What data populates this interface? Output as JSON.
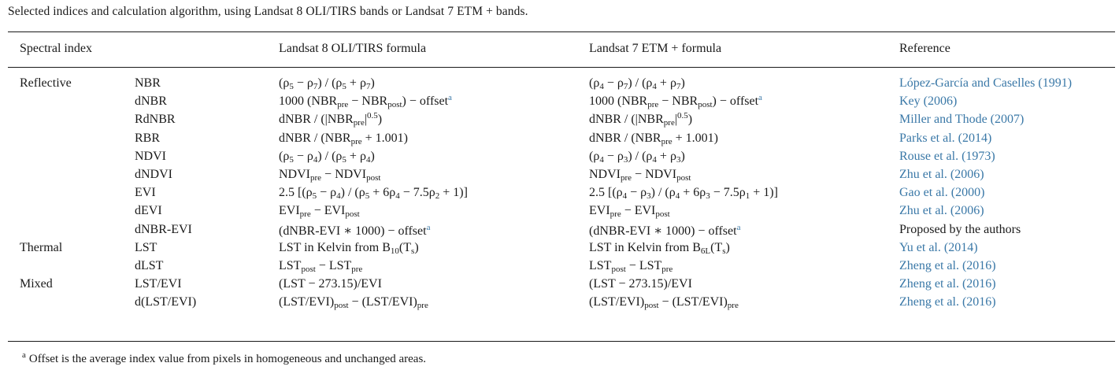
{
  "caption": "Selected indices and calculation algorithm, using Landsat 8 OLI/TIRS bands or Landsat 7 ETM + bands.",
  "headers": {
    "index": "Spectral index",
    "l8": "Landsat 8 OLI/TIRS formula",
    "l7": "Landsat 7 ETM + formula",
    "reference": "Reference"
  },
  "categories": [
    "Reflective",
    "Thermal",
    "Mixed"
  ],
  "rows": [
    {
      "category": "Reflective",
      "name": "NBR",
      "l8": "(ρ<sub>5</sub> − ρ<sub>7</sub>) / (ρ<sub>5</sub> + ρ<sub>7</sub>)",
      "l7": "(ρ<sub>4</sub> − ρ<sub>7</sub>) / (ρ<sub>4</sub> + ρ<sub>7</sub>)",
      "reference": "López-García and Caselles (1991)"
    },
    {
      "name": "dNBR",
      "l8": "1000 (NBR<sub>pre</sub> − NBR<sub>post</sub>) − offset<sup class=\"fn\">a</sup>",
      "l7": "1000 (NBR<sub>pre</sub> − NBR<sub>post</sub>) − offset<sup class=\"fn\">a</sup>",
      "reference": "Key (2006)"
    },
    {
      "name": "RdNBR",
      "l8": "dNBR / (|NBR<sub>pre</sub>|<sup>0.5</sup>)",
      "l7": "dNBR / (|NBR<sub>pre</sub>|<sup>0.5</sup>)",
      "reference": "Miller and Thode (2007)"
    },
    {
      "name": "RBR",
      "l8": "dNBR / (NBR<sub>pre</sub> + 1.001)",
      "l7": "dNBR / (NBR<sub>pre</sub> + 1.001)",
      "reference": "Parks et al. (2014)"
    },
    {
      "name": "NDVI",
      "l8": "(ρ<sub>5</sub> − ρ<sub>4</sub>) / (ρ<sub>5</sub> + ρ<sub>4</sub>)",
      "l7": "(ρ<sub>4</sub> − ρ<sub>3</sub>) / (ρ<sub>4</sub> + ρ<sub>3</sub>)",
      "reference": "Rouse et al. (1973)"
    },
    {
      "name": "dNDVI",
      "l8": "NDVI<sub>pre</sub> − NDVI<sub>post</sub>",
      "l7": "NDVI<sub>pre</sub> − NDVI<sub>post</sub>",
      "reference": "Zhu et al. (2006)"
    },
    {
      "name": "EVI",
      "l8": "2.5 [(ρ<sub>5</sub> − ρ<sub>4</sub>) / (ρ<sub>5</sub> + 6ρ<sub>4</sub> − 7.5ρ<sub>2</sub> + 1)]",
      "l7": "2.5 [(ρ<sub>4</sub> − ρ<sub>3</sub>) / (ρ<sub>4</sub> + 6ρ<sub>3</sub> − 7.5ρ<sub>1</sub> + 1)]",
      "reference": "Gao et al. (2000)"
    },
    {
      "name": "dEVI",
      "l8": "EVI<sub>pre</sub> − EVI<sub>post</sub>",
      "l7": "EVI<sub>pre</sub> − EVI<sub>post</sub>",
      "reference": "Zhu et al. (2006)"
    },
    {
      "name": "dNBR-EVI",
      "l8": "(dNBR-EVI ∗ 1000) − offset<sup class=\"fn\">a</sup>",
      "l7": "(dNBR-EVI ∗ 1000) − offset<sup class=\"fn\">a</sup>",
      "reference": "Proposed by the authors",
      "plain": true
    },
    {
      "category": "Thermal",
      "name": "LST",
      "l8": "LST in Kelvin from B<sub>10</sub>(T<sub>s</sub>)",
      "l7": "LST in Kelvin from B<sub>6L</sub>(T<sub>s</sub>)",
      "reference": "Yu et al. (2014)"
    },
    {
      "name": "dLST",
      "l8": "LST<sub>post</sub> − LST<sub>pre</sub>",
      "l7": "LST<sub>post</sub> − LST<sub>pre</sub>",
      "reference": "Zheng et al. (2016)"
    },
    {
      "category": "Mixed",
      "name": "LST/EVI",
      "l8": "(LST − 273.15)/EVI",
      "l7": "(LST − 273.15)/EVI",
      "reference": "Zheng et al. (2016)"
    },
    {
      "name": "d(LST/EVI)",
      "l8": "(LST/EVI)<sub>post</sub> − (LST/EVI)<sub>pre</sub>",
      "l7": "(LST/EVI)<sub>post</sub> − (LST/EVI)<sub>pre</sub>",
      "reference": "Zheng et al. (2016)"
    }
  ],
  "footnote": {
    "mark": "a",
    "text": "Offset is the average index value from pixels in homogeneous and unchanged areas."
  }
}
